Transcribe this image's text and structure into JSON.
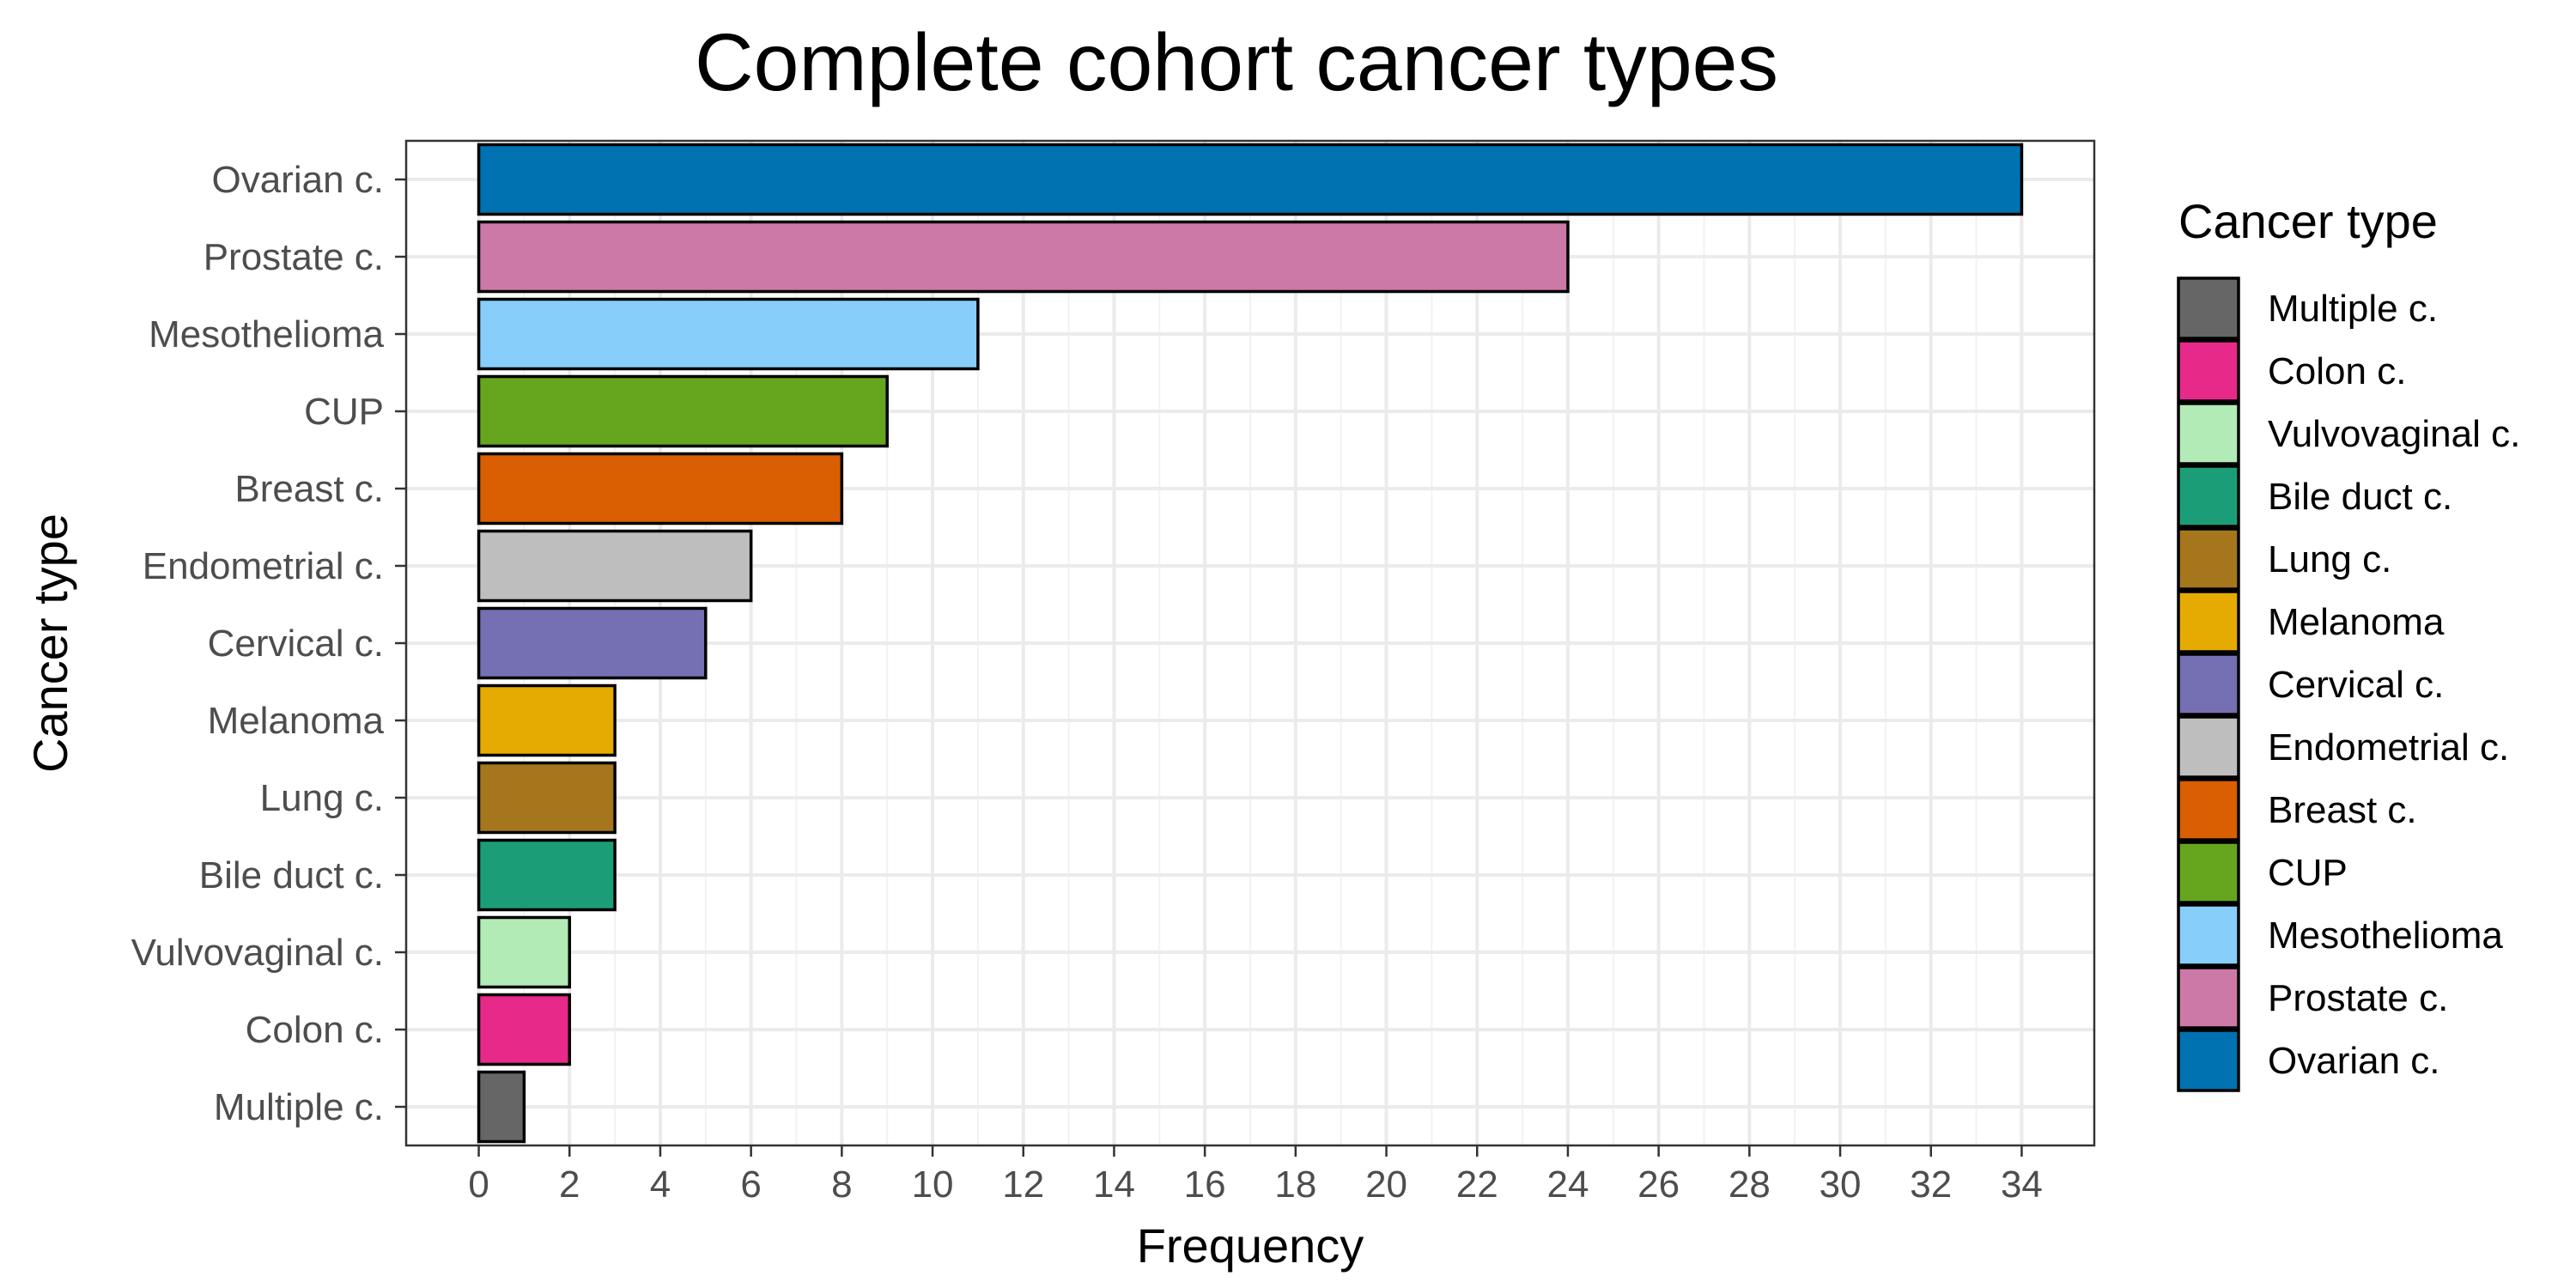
{
  "chart_data": {
    "type": "bar",
    "orientation": "horizontal",
    "title": "Complete cohort cancer types",
    "xlabel": "Frequency",
    "ylabel": "Cancer type",
    "xlim": [
      -1.6,
      35.6
    ],
    "xticks": [
      0,
      2,
      4,
      6,
      8,
      10,
      12,
      14,
      16,
      18,
      20,
      22,
      24,
      26,
      28,
      30,
      32,
      34
    ],
    "grid": true,
    "legend_title": "Cancer type",
    "legend_position": "right",
    "categories": [
      "Multiple c.",
      "Colon c.",
      "Vulvovaginal c.",
      "Bile duct c.",
      "Lung c.",
      "Melanoma",
      "Cervical c.",
      "Endometrial c.",
      "Breast c.",
      "CUP",
      "Mesothelioma",
      "Prostate c.",
      "Ovarian c."
    ],
    "values": [
      1,
      2,
      2,
      3,
      3,
      3,
      5,
      6,
      8,
      9,
      11,
      24,
      34
    ],
    "colors": [
      "#666666",
      "#E7298A",
      "#B2EBB5",
      "#1B9E77",
      "#A6761D",
      "#E6AB02",
      "#7570B3",
      "#BEBEBE",
      "#D95F02",
      "#66A61E",
      "#87CEFA",
      "#CC79A7",
      "#0072B2"
    ]
  }
}
